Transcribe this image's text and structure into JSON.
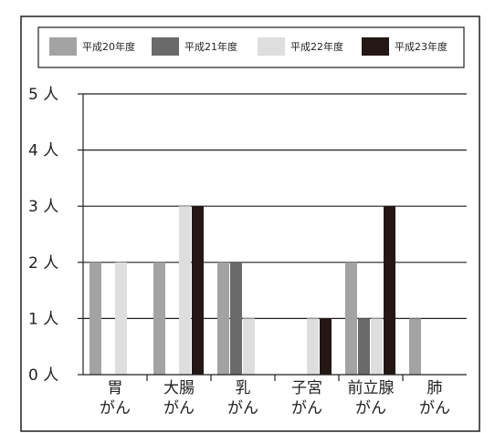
{
  "chart_data": {
    "type": "bar",
    "categories": [
      [
        "胃",
        "がん"
      ],
      [
        "大腸",
        "がん"
      ],
      [
        "乳",
        "がん"
      ],
      [
        "子宮",
        "がん"
      ],
      [
        "前立腺",
        "がん"
      ],
      [
        "肺",
        "がん"
      ]
    ],
    "series": [
      {
        "name": "平成20年度",
        "color": "#a3a3a3",
        "values": [
          2,
          2,
          2,
          0,
          2,
          1
        ]
      },
      {
        "name": "平成21年度",
        "color": "#6a6a6a",
        "values": [
          0,
          0,
          2,
          0,
          1,
          0
        ]
      },
      {
        "name": "平成22年度",
        "color": "#dedede",
        "values": [
          2,
          3,
          1,
          1,
          1,
          0
        ]
      },
      {
        "name": "平成23年度",
        "color": "#231815",
        "values": [
          0,
          3,
          0,
          1,
          3,
          0
        ]
      }
    ],
    "y_ticks": [
      "0 人",
      "1 人",
      "2 人",
      "3 人",
      "4 人",
      "5 人"
    ],
    "ylim": [
      0,
      5
    ],
    "grid": true,
    "legend_position": "top"
  }
}
